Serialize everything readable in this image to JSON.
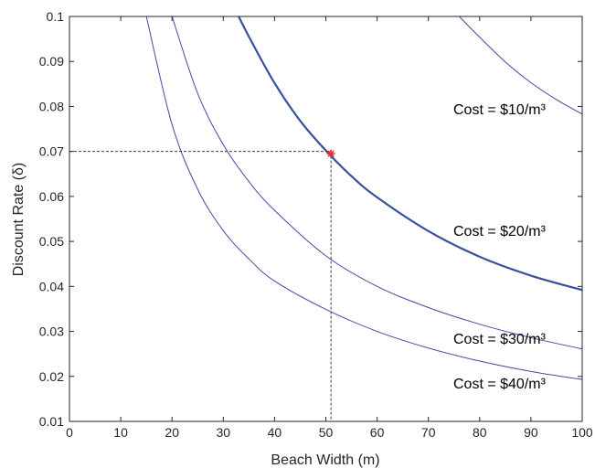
{
  "chart_data": {
    "type": "line",
    "xlabel": "Beach Width (m)",
    "ylabel": "Discount Rate  (δ)",
    "xlim": [
      0,
      100
    ],
    "ylim": [
      0.01,
      0.1
    ],
    "xticks": [
      "0",
      "10",
      "20",
      "30",
      "40",
      "50",
      "60",
      "70",
      "80",
      "90",
      "100"
    ],
    "yticks": [
      "0.01",
      "0.02",
      "0.03",
      "0.04",
      "0.05",
      "0.06",
      "0.07",
      "0.08",
      "0.09",
      "0.1"
    ],
    "grid": false,
    "line_color": "#3a4fa0",
    "marker_color": "#e8303a",
    "guide_color": "#404040",
    "series": [
      {
        "label": "Cost = $10/m³",
        "highlight": false,
        "x": [
          76,
          80,
          85,
          90,
          95,
          100
        ],
        "y": [
          0.1,
          0.0954,
          0.0899,
          0.0853,
          0.0815,
          0.0783
        ]
      },
      {
        "label": "Cost = $20/m³",
        "highlight": true,
        "x": [
          33,
          35,
          40,
          45,
          50,
          55,
          60,
          70,
          80,
          90,
          100
        ],
        "y": [
          0.1,
          0.0955,
          0.0852,
          0.0768,
          0.0702,
          0.0645,
          0.0598,
          0.0523,
          0.0466,
          0.0424,
          0.0392
        ]
      },
      {
        "label": "Cost = $30/m³",
        "highlight": false,
        "x": [
          20,
          25,
          30,
          35,
          40,
          50,
          60,
          70,
          80,
          90,
          100
        ],
        "y": [
          0.1,
          0.0829,
          0.0715,
          0.0633,
          0.0569,
          0.0468,
          0.04,
          0.0353,
          0.0316,
          0.0286,
          0.0261
        ]
      },
      {
        "label": "Cost = $40/m³",
        "highlight": false,
        "x": [
          15,
          20,
          25,
          30,
          35,
          40,
          50,
          60,
          70,
          80,
          90,
          100
        ],
        "y": [
          0.1,
          0.076,
          0.0616,
          0.0524,
          0.0461,
          0.0412,
          0.0349,
          0.03,
          0.0263,
          0.0234,
          0.0211,
          0.0193
        ]
      }
    ],
    "highlight_point": {
      "x": 51,
      "y": 0.0695
    },
    "guide_y": 0.07,
    "guide_x": 51
  }
}
